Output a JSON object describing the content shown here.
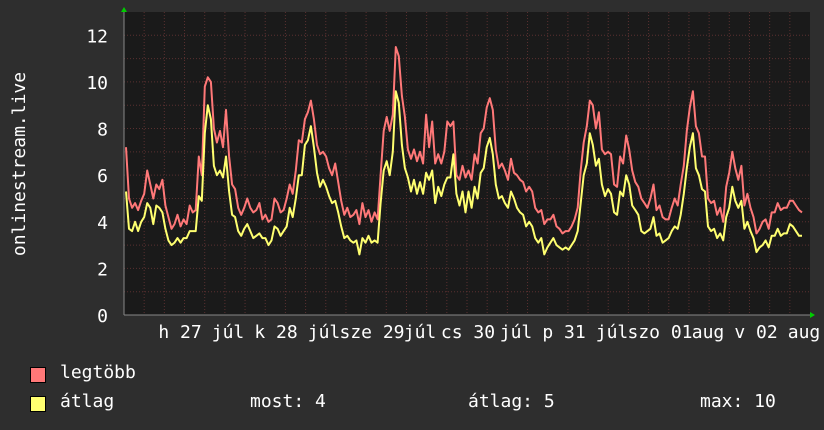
{
  "ylabel": "onlinestream.live",
  "colors": {
    "background": "#2e2e2e",
    "plot_bg": "#1a1a1a",
    "grid": "#5a3030",
    "max_series": "#ff7878",
    "avg_series": "#ffff70",
    "axis_arrow": "#00cc00",
    "text": "#ffffff"
  },
  "chart_data": {
    "type": "area",
    "ylim": [
      0,
      13
    ],
    "yticks": [
      0,
      2,
      4,
      6,
      8,
      10,
      12
    ],
    "grid": true,
    "xticks": [
      "h 27",
      "júl",
      "k 28",
      "júl",
      "sze 29",
      "júl",
      "cs 30",
      "júl",
      "p 31",
      "júl",
      "szo 01",
      "aug",
      "v 02",
      "aug"
    ],
    "series": [
      {
        "name": "legtöbb",
        "values": [
          7.2,
          5.0,
          4.6,
          4.8,
          4.5,
          4.9,
          5.2,
          6.2,
          5.6,
          5.0,
          5.6,
          5.4,
          5.8,
          4.7,
          4.2,
          3.7,
          3.9,
          4.3,
          3.8,
          4.1,
          3.9,
          4.7,
          4.4,
          4.5,
          6.8,
          6.0,
          9.8,
          10.2,
          10.0,
          8.0,
          7.4,
          7.9,
          7.2,
          8.8,
          6.8,
          5.6,
          5.4,
          4.6,
          4.3,
          4.6,
          5.0,
          4.6,
          4.4,
          4.5,
          4.8,
          4.1,
          4.3,
          4.0,
          4.1,
          5.0,
          4.8,
          4.4,
          4.5,
          5.0,
          5.6,
          5.2,
          6.2,
          7.5,
          7.4,
          8.4,
          8.7,
          9.2,
          8.4,
          7.3,
          6.9,
          7.0,
          6.8,
          6.3,
          6.0,
          6.5,
          5.7,
          4.9,
          4.3,
          4.6,
          4.2,
          4.3,
          4.5,
          3.9,
          4.8,
          4.2,
          4.5,
          4.0,
          4.4,
          4.1,
          6.0,
          7.9,
          8.5,
          7.9,
          8.6,
          11.5,
          11.1,
          9.4,
          8.5,
          7.1,
          6.7,
          7.1,
          6.6,
          7.0,
          6.5,
          8.6,
          7.2,
          8.3,
          6.5,
          6.9,
          6.5,
          7.0,
          8.3,
          8.1,
          8.3,
          6.0,
          5.8,
          6.4,
          5.9,
          6.2,
          5.8,
          6.9,
          6.5,
          7.8,
          8.0,
          8.9,
          9.3,
          8.8,
          7.1,
          6.3,
          6.5,
          6.2,
          5.8,
          6.7,
          6.1,
          6.0,
          5.8,
          5.7,
          5.3,
          5.5,
          5.3,
          4.6,
          4.4,
          4.5,
          3.9,
          4.1,
          4.1,
          4.3,
          3.8,
          3.7,
          3.5,
          3.6,
          3.6,
          3.8,
          4.1,
          4.6,
          6.2,
          7.4,
          8.1,
          9.2,
          9.0,
          8.0,
          8.7,
          7.1,
          6.9,
          7.0,
          6.9,
          5.6,
          5.5,
          6.8,
          6.5,
          7.7,
          7.1,
          6.2,
          5.7,
          5.5,
          5.0,
          4.8,
          4.6,
          5.0,
          5.6,
          4.5,
          4.7,
          4.2,
          4.1,
          4.1,
          4.6,
          5.0,
          4.7,
          5.6,
          6.4,
          7.9,
          8.9,
          9.6,
          8.1,
          7.8,
          6.8,
          6.8,
          5.0,
          4.8,
          4.9,
          4.3,
          4.6,
          4.0,
          5.5,
          6.1,
          7.0,
          6.3,
          5.8,
          6.4,
          4.7,
          5.2,
          4.6,
          4.2,
          3.5,
          3.7,
          4.0,
          4.1,
          3.7,
          4.4,
          4.4,
          4.8,
          4.5,
          4.6,
          4.6,
          4.9,
          4.9,
          4.7,
          4.5,
          4.4
        ]
      },
      {
        "name": "átlag",
        "values": [
          5.3,
          3.7,
          3.6,
          4.0,
          3.6,
          4.0,
          4.2,
          4.8,
          4.6,
          3.9,
          4.7,
          4.6,
          4.4,
          3.7,
          3.2,
          3.0,
          3.1,
          3.3,
          3.1,
          3.3,
          3.3,
          3.6,
          3.6,
          3.6,
          5.1,
          4.9,
          7.8,
          9.0,
          8.4,
          6.4,
          6.0,
          6.2,
          5.9,
          6.8,
          5.3,
          4.3,
          4.2,
          3.6,
          3.4,
          3.7,
          3.9,
          3.6,
          3.3,
          3.4,
          3.5,
          3.3,
          3.3,
          3.0,
          3.2,
          3.8,
          3.7,
          3.4,
          3.6,
          3.8,
          4.6,
          4.2,
          5.0,
          6.0,
          6.0,
          7.3,
          7.5,
          8.1,
          7.2,
          6.1,
          5.5,
          5.8,
          5.5,
          5.1,
          4.8,
          4.9,
          4.4,
          3.8,
          3.3,
          3.4,
          3.2,
          3.1,
          3.2,
          2.6,
          3.3,
          3.1,
          3.4,
          3.1,
          3.2,
          3.1,
          4.8,
          6.2,
          6.6,
          6.0,
          7.0,
          9.6,
          9.1,
          7.3,
          6.3,
          5.9,
          5.3,
          5.8,
          5.2,
          5.7,
          5.2,
          6.1,
          5.8,
          6.2,
          4.8,
          5.5,
          5.1,
          5.6,
          5.9,
          5.9,
          6.9,
          5.2,
          4.7,
          5.3,
          4.4,
          5.3,
          4.6,
          5.5,
          5.0,
          6.1,
          6.3,
          7.2,
          7.6,
          6.9,
          5.6,
          5.0,
          5.1,
          4.8,
          4.6,
          5.3,
          5.0,
          4.6,
          4.4,
          4.3,
          3.8,
          4.0,
          3.8,
          3.3,
          3.1,
          3.3,
          2.6,
          2.9,
          3.1,
          3.3,
          3.0,
          2.9,
          2.8,
          2.9,
          2.8,
          3.0,
          3.2,
          3.6,
          4.8,
          6.0,
          6.5,
          7.8,
          7.3,
          6.4,
          6.7,
          5.6,
          5.1,
          5.4,
          5.2,
          4.4,
          4.3,
          5.3,
          5.1,
          6.0,
          5.6,
          4.7,
          4.5,
          4.3,
          3.6,
          3.5,
          3.6,
          3.7,
          4.2,
          3.4,
          3.5,
          3.1,
          3.2,
          3.3,
          3.6,
          3.8,
          3.7,
          4.3,
          5.2,
          6.3,
          7.2,
          7.8,
          6.3,
          6.0,
          5.4,
          5.3,
          3.8,
          3.6,
          3.7,
          3.3,
          3.5,
          3.2,
          4.2,
          4.6,
          5.5,
          4.9,
          4.6,
          4.9,
          3.7,
          4.0,
          3.6,
          3.3,
          2.7,
          2.9,
          3.0,
          3.2,
          2.9,
          3.4,
          3.4,
          3.7,
          3.4,
          3.5,
          3.5,
          3.9,
          3.8,
          3.6,
          3.4,
          3.4
        ]
      }
    ]
  },
  "stats": {
    "now": "most: 4",
    "avg": "átlag: 5",
    "max": "max: 10"
  }
}
